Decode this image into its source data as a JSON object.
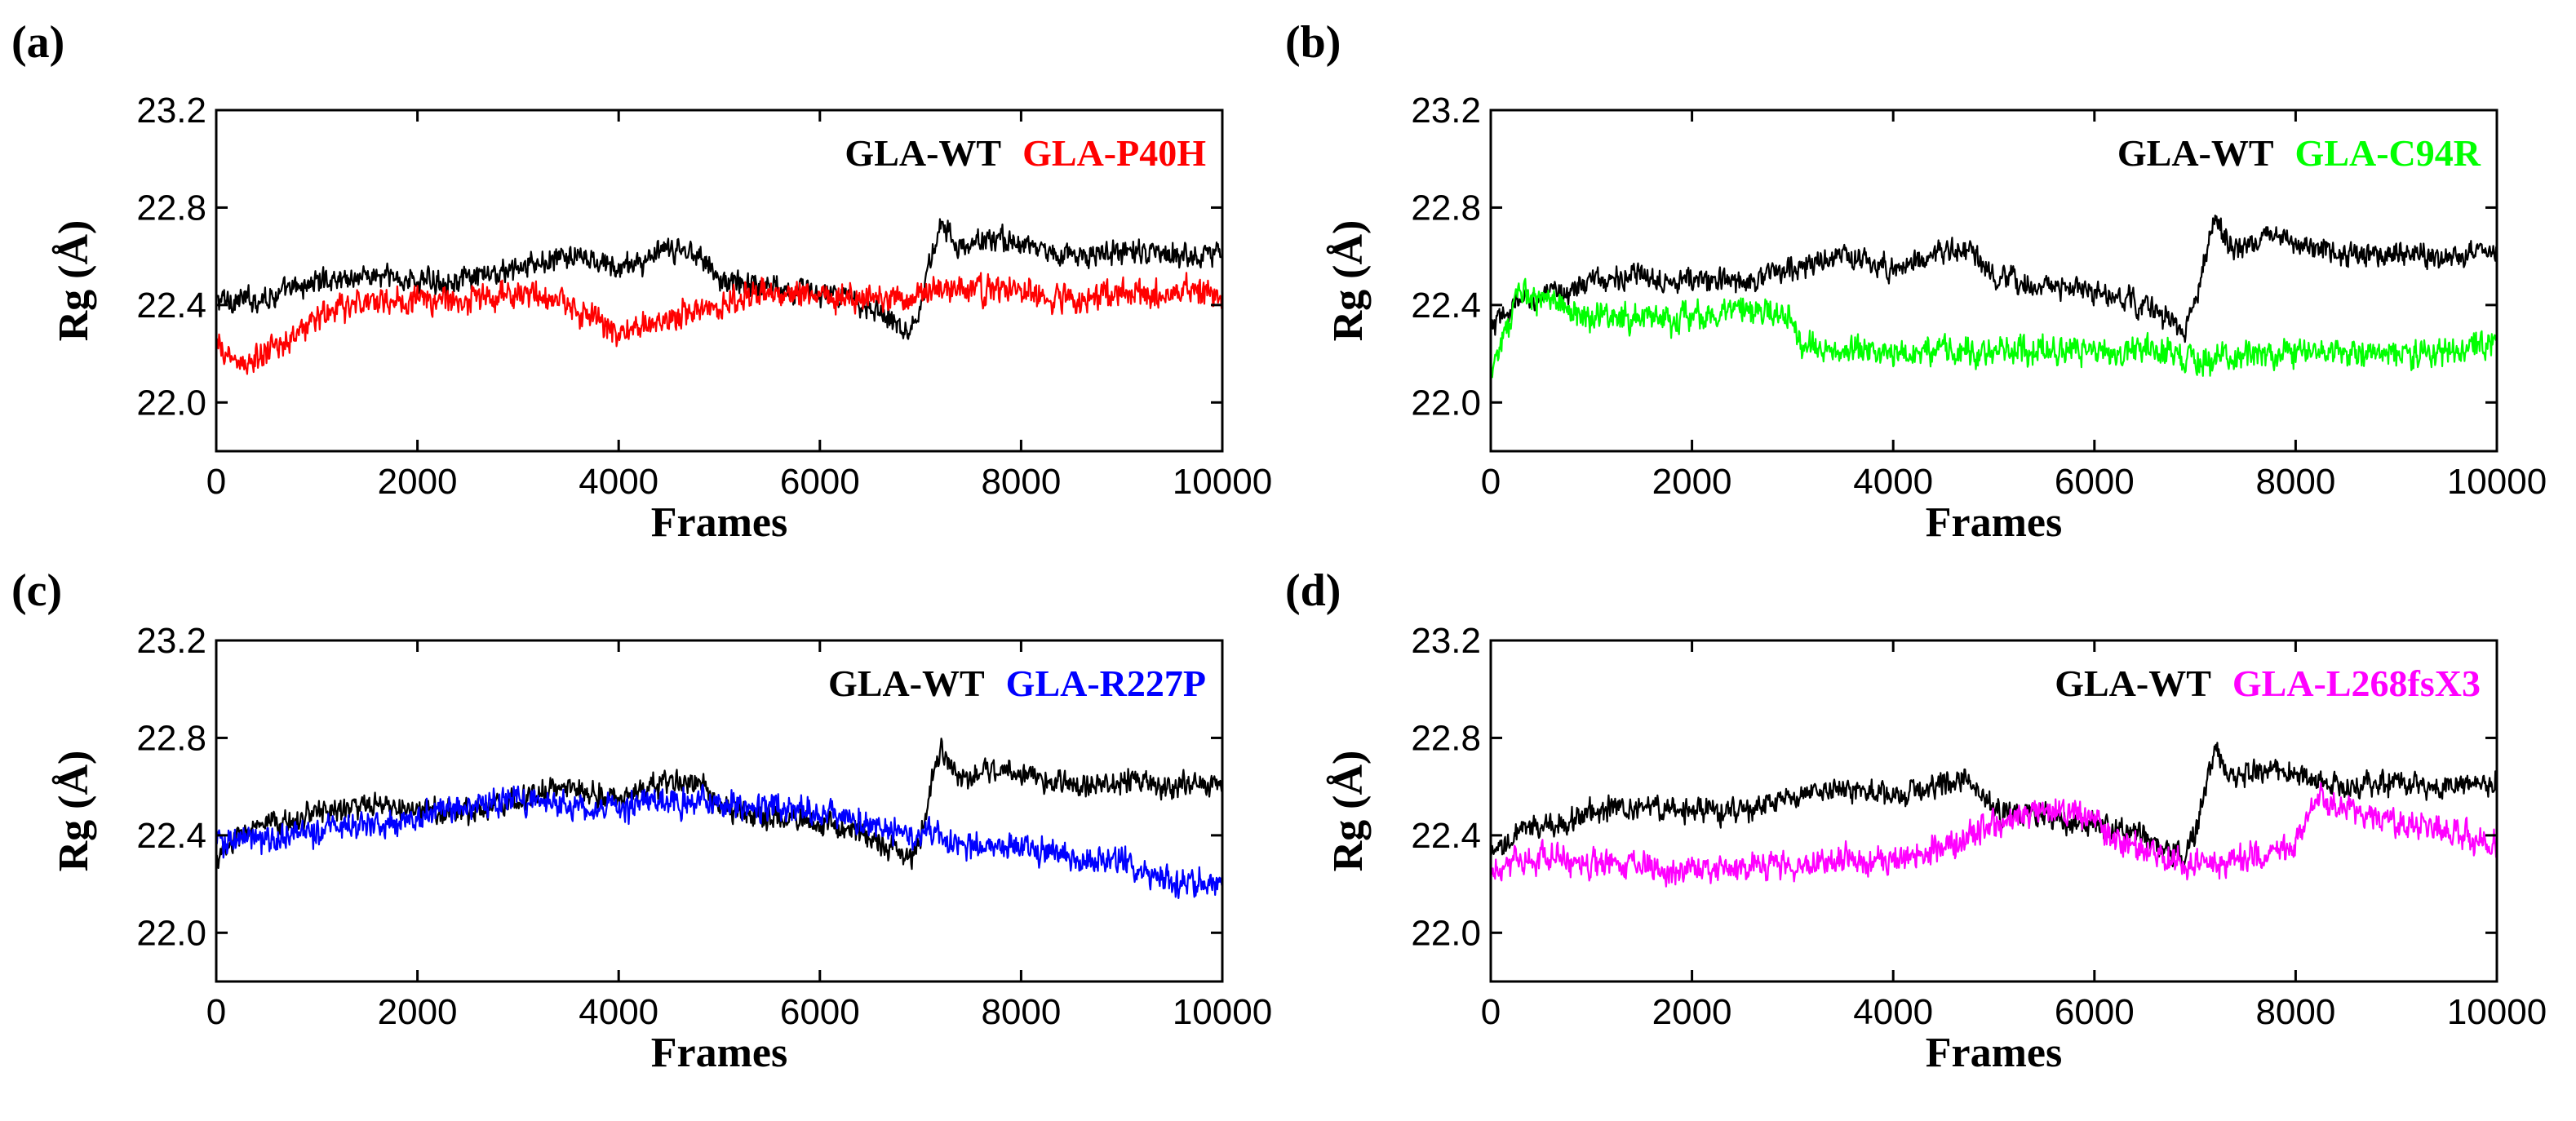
{
  "chart_data": [
    {
      "panel": "(a)",
      "type": "line",
      "xlabel": "Frames",
      "ylabel": "Rg (Å)",
      "xlim": [
        0,
        10000
      ],
      "ylim": [
        21.8,
        23.2
      ],
      "xticks": [
        0,
        2000,
        4000,
        6000,
        8000,
        10000
      ],
      "yticks": [
        22.0,
        22.4,
        22.8,
        23.2
      ],
      "xtick_labels": [
        "0",
        "2000",
        "4000",
        "6000",
        "8000",
        "10000"
      ],
      "ytick_labels": [
        "22.0",
        "22.4",
        "22.8",
        "23.2"
      ],
      "legend_position": "top-right",
      "series": [
        {
          "name": "GLA-WT",
          "color": "#000000",
          "noise": 0.06,
          "x": [
            0,
            300,
            700,
            1000,
            1500,
            2000,
            2500,
            3000,
            3500,
            4000,
            4500,
            4800,
            5000,
            5500,
            6000,
            6500,
            6900,
            7000,
            7200,
            7400,
            7700,
            8000,
            8500,
            9000,
            9500,
            10000
          ],
          "values": [
            22.42,
            22.42,
            22.45,
            22.5,
            22.52,
            22.5,
            22.5,
            22.55,
            22.6,
            22.55,
            22.62,
            22.62,
            22.5,
            22.48,
            22.45,
            22.4,
            22.3,
            22.4,
            22.75,
            22.62,
            22.68,
            22.65,
            22.6,
            22.62,
            22.6,
            22.62
          ]
        },
        {
          "name": "GLA-P40H",
          "color": "#ff0000",
          "noise": 0.07,
          "x": [
            0,
            300,
            700,
            1000,
            1500,
            2000,
            2500,
            3000,
            3500,
            4000,
            4500,
            5000,
            5500,
            6000,
            6500,
            7000,
            7500,
            8000,
            8500,
            9000,
            9500,
            10000
          ],
          "values": [
            22.22,
            22.15,
            22.25,
            22.35,
            22.42,
            22.42,
            22.42,
            22.45,
            22.4,
            22.28,
            22.35,
            22.4,
            22.45,
            22.45,
            22.43,
            22.45,
            22.47,
            22.45,
            22.42,
            22.45,
            22.45,
            22.45
          ]
        }
      ]
    },
    {
      "panel": "(b)",
      "type": "line",
      "xlabel": "Frames",
      "ylabel": "Rg (Å)",
      "xlim": [
        0,
        10000
      ],
      "ylim": [
        21.8,
        23.2
      ],
      "xticks": [
        0,
        2000,
        4000,
        6000,
        8000,
        10000
      ],
      "yticks": [
        22.0,
        22.4,
        22.8,
        23.2
      ],
      "xtick_labels": [
        "0",
        "2000",
        "4000",
        "6000",
        "8000",
        "10000"
      ],
      "ytick_labels": [
        "22.0",
        "22.4",
        "22.8",
        "23.2"
      ],
      "legend_position": "top-right",
      "series": [
        {
          "name": "GLA-WT",
          "color": "#000000",
          "noise": 0.06,
          "x": [
            0,
            300,
            700,
            1000,
            1500,
            2000,
            2500,
            3000,
            3500,
            4000,
            4500,
            4800,
            5000,
            5500,
            6000,
            6500,
            6900,
            7000,
            7200,
            7400,
            7700,
            8000,
            8500,
            9000,
            9500,
            10000
          ],
          "values": [
            22.3,
            22.42,
            22.45,
            22.5,
            22.52,
            22.5,
            22.5,
            22.55,
            22.6,
            22.55,
            22.62,
            22.62,
            22.5,
            22.48,
            22.45,
            22.4,
            22.3,
            22.4,
            22.75,
            22.62,
            22.68,
            22.65,
            22.6,
            22.62,
            22.6,
            22.62
          ]
        },
        {
          "name": "GLA-C94R",
          "color": "#00ff00",
          "noise": 0.07,
          "x": [
            0,
            300,
            700,
            1000,
            1500,
            2000,
            2500,
            3000,
            3100,
            3500,
            4000,
            4500,
            5000,
            5500,
            6000,
            6500,
            7000,
            7500,
            8000,
            8500,
            9000,
            9500,
            10000
          ],
          "values": [
            22.15,
            22.45,
            22.4,
            22.35,
            22.35,
            22.35,
            22.38,
            22.35,
            22.22,
            22.22,
            22.2,
            22.22,
            22.2,
            22.22,
            22.22,
            22.22,
            22.18,
            22.2,
            22.2,
            22.2,
            22.2,
            22.2,
            22.25
          ]
        }
      ]
    },
    {
      "panel": "(c)",
      "type": "line",
      "xlabel": "Frames",
      "ylabel": "Rg (Å)",
      "xlim": [
        0,
        10000
      ],
      "ylim": [
        21.8,
        23.2
      ],
      "xticks": [
        0,
        2000,
        4000,
        6000,
        8000,
        10000
      ],
      "yticks": [
        22.0,
        22.4,
        22.8,
        23.2
      ],
      "xtick_labels": [
        "0",
        "2000",
        "4000",
        "6000",
        "8000",
        "10000"
      ],
      "ytick_labels": [
        "22.0",
        "22.4",
        "22.8",
        "23.2"
      ],
      "legend_position": "top-right",
      "series": [
        {
          "name": "GLA-WT",
          "color": "#000000",
          "noise": 0.06,
          "x": [
            0,
            300,
            700,
            1000,
            1500,
            2000,
            2500,
            3000,
            3500,
            4000,
            4500,
            4800,
            5000,
            5500,
            6000,
            6500,
            6900,
            7000,
            7200,
            7400,
            7700,
            8000,
            8500,
            9000,
            9500,
            10000
          ],
          "values": [
            22.3,
            22.42,
            22.45,
            22.5,
            22.52,
            22.5,
            22.5,
            22.55,
            22.6,
            22.55,
            22.62,
            22.62,
            22.5,
            22.48,
            22.45,
            22.4,
            22.3,
            22.4,
            22.75,
            22.62,
            22.68,
            22.65,
            22.6,
            22.62,
            22.6,
            22.62
          ]
        },
        {
          "name": "GLA-R227P",
          "color": "#0000ff",
          "noise": 0.07,
          "x": [
            0,
            500,
            1000,
            1500,
            2000,
            2500,
            3000,
            3500,
            4000,
            4500,
            5000,
            5500,
            6000,
            6500,
            7000,
            7500,
            8000,
            8500,
            9000,
            9500,
            10000
          ],
          "values": [
            22.38,
            22.38,
            22.42,
            22.45,
            22.48,
            22.52,
            22.55,
            22.52,
            22.5,
            22.55,
            22.52,
            22.52,
            22.5,
            22.45,
            22.4,
            22.35,
            22.35,
            22.3,
            22.3,
            22.2,
            22.22
          ]
        }
      ]
    },
    {
      "panel": "(d)",
      "type": "line",
      "xlabel": "Frames",
      "ylabel": "Rg (Å)",
      "xlim": [
        0,
        10000
      ],
      "ylim": [
        21.8,
        23.2
      ],
      "xticks": [
        0,
        2000,
        4000,
        6000,
        8000,
        10000
      ],
      "yticks": [
        22.0,
        22.4,
        22.8,
        23.2
      ],
      "xtick_labels": [
        "0",
        "2000",
        "4000",
        "6000",
        "8000",
        "10000"
      ],
      "ytick_labels": [
        "22.0",
        "22.4",
        "22.8",
        "23.2"
      ],
      "legend_position": "top-right",
      "series": [
        {
          "name": "GLA-WT",
          "color": "#000000",
          "noise": 0.06,
          "x": [
            0,
            300,
            700,
            1000,
            1500,
            2000,
            2500,
            3000,
            3500,
            4000,
            4500,
            4800,
            5000,
            5500,
            6000,
            6500,
            6900,
            7000,
            7200,
            7400,
            7700,
            8000,
            8500,
            9000,
            9500,
            10000
          ],
          "values": [
            22.3,
            22.42,
            22.45,
            22.5,
            22.52,
            22.5,
            22.5,
            22.55,
            22.6,
            22.55,
            22.62,
            22.62,
            22.5,
            22.48,
            22.45,
            22.4,
            22.3,
            22.4,
            22.75,
            22.62,
            22.68,
            22.65,
            22.6,
            22.62,
            22.6,
            22.62
          ]
        },
        {
          "name": "GLA-L268fsX3",
          "color": "#ff00ff",
          "noise": 0.07,
          "x": [
            0,
            500,
            1000,
            1500,
            2000,
            2500,
            3000,
            3500,
            4000,
            4500,
            5000,
            5500,
            5800,
            6000,
            6500,
            7000,
            7500,
            8000,
            8200,
            8500,
            9000,
            9500,
            10000
          ],
          "values": [
            22.28,
            22.3,
            22.28,
            22.28,
            22.25,
            22.28,
            22.28,
            22.3,
            22.3,
            22.35,
            22.45,
            22.5,
            22.5,
            22.45,
            22.32,
            22.28,
            22.3,
            22.35,
            22.55,
            22.5,
            22.45,
            22.42,
            22.35
          ]
        }
      ]
    }
  ]
}
